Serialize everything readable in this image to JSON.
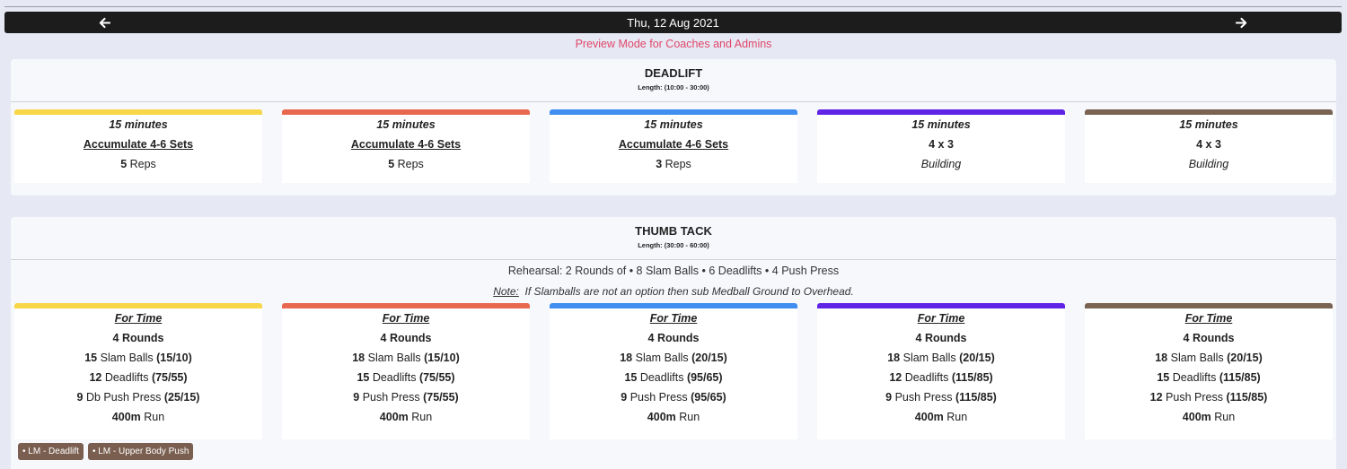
{
  "header": {
    "date": "Thu, 12 Aug 2021",
    "preview_text": "Preview Mode for Coaches and Admins",
    "prev_icon": "arrow-left-icon",
    "next_icon": "arrow-right-icon"
  },
  "colors": [
    "#f7d64a",
    "#e8674f",
    "#3f8ef0",
    "#6024e6",
    "#7a6352"
  ],
  "sections": [
    {
      "title": "DEADLIFT",
      "length": "Length: (10:00 - 30:00)",
      "cards": [
        {
          "time": "15 minutes",
          "scheme": "Accumulate 4-6 Sets",
          "reps_num": "5",
          "reps_label": " Reps"
        },
        {
          "time": "15 minutes",
          "scheme": "Accumulate 4-6 Sets",
          "reps_num": "5",
          "reps_label": " Reps"
        },
        {
          "time": "15 minutes",
          "scheme": "Accumulate 4-6 Sets",
          "reps_num": "3",
          "reps_label": " Reps"
        },
        {
          "time": "15 minutes",
          "scheme": "4 x 3",
          "building": "Building"
        },
        {
          "time": "15 minutes",
          "scheme": "4 x 3",
          "building": "Building"
        }
      ]
    },
    {
      "title": "THUMB TACK",
      "length": "Length: (30:00 - 60:00)",
      "rehearsal_prefix": "Rehearsal: 2 Rounds of ",
      "rehearsal_items": [
        {
          "num": "8",
          "name": " Slam Balls"
        },
        {
          "num": "6",
          "name": " Deadlifts"
        },
        {
          "num": "4",
          "name": " Push Press"
        }
      ],
      "note_label": "Note:",
      "note_text": "  If Slamballs are not an option then sub Medball Ground to Overhead.",
      "cards": [
        {
          "format": "For Time",
          "rounds": "4 Rounds",
          "moves": [
            {
              "num": "15",
              "name": " Slam Balls ",
              "load": "(15/10)"
            },
            {
              "num": "12",
              "name": " Deadlifts ",
              "load": "(75/55)"
            },
            {
              "num": "9",
              "name": " Db Push Press ",
              "load": "(25/15)"
            }
          ],
          "run_num": "400m",
          "run_label": " Run"
        },
        {
          "format": "For Time",
          "rounds": "4 Rounds",
          "moves": [
            {
              "num": "18",
              "name": " Slam Balls ",
              "load": "(15/10)"
            },
            {
              "num": "15",
              "name": " Deadlifts ",
              "load": "(75/55)"
            },
            {
              "num": "9",
              "name": " Push Press ",
              "load": "(75/55)"
            }
          ],
          "run_num": "400m",
          "run_label": " Run"
        },
        {
          "format": "For Time",
          "rounds": "4 Rounds",
          "moves": [
            {
              "num": "18",
              "name": " Slam Balls ",
              "load": "(20/15)"
            },
            {
              "num": "15",
              "name": " Deadlifts ",
              "load": "(95/65)"
            },
            {
              "num": "9",
              "name": " Push Press ",
              "load": "(95/65)"
            }
          ],
          "run_num": "400m",
          "run_label": " Run"
        },
        {
          "format": "For Time",
          "rounds": "4 Rounds",
          "moves": [
            {
              "num": "18",
              "name": " Slam Balls ",
              "load": "(20/15)"
            },
            {
              "num": "12",
              "name": " Deadlifts ",
              "load": "(115/85)"
            },
            {
              "num": "9",
              "name": " Push Press ",
              "load": "(115/85)"
            }
          ],
          "run_num": "400m",
          "run_label": " Run"
        },
        {
          "format": "For Time",
          "rounds": "4 Rounds",
          "moves": [
            {
              "num": "18",
              "name": " Slam Balls ",
              "load": "(20/15)"
            },
            {
              "num": "15",
              "name": " Deadlifts ",
              "load": "(115/85)"
            },
            {
              "num": "12",
              "name": " Push Press ",
              "load": "(115/85)"
            }
          ],
          "run_num": "400m",
          "run_label": " Run"
        }
      ],
      "tags": [
        "• LM - Deadlift",
        "• LM - Upper Body Push"
      ]
    }
  ]
}
